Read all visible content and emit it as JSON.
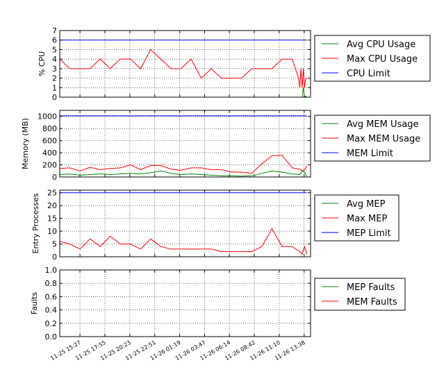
{
  "x_tick_labels": [
    "11-25 15:27",
    "11-25 17:55",
    "11-25 20:23",
    "11-25 22:51",
    "11-26 01:19",
    "11-26 03:47",
    "11-26 06:14",
    "11-26 08:42",
    "11-26 11:10",
    "11-26 13:38"
  ],
  "chart_data": [
    {
      "type": "line",
      "ylabel": "% CPU",
      "ylim": [
        0,
        7
      ],
      "yticks": [
        "0",
        "1",
        "2",
        "3",
        "4",
        "5",
        "6",
        "7"
      ],
      "grid": true,
      "legend_placement": "outside-right",
      "x": [
        "11-25 13:27",
        "11-25 14:27",
        "11-25 15:27",
        "11-25 16:27",
        "11-25 17:27",
        "11-25 18:27",
        "11-25 19:27",
        "11-25 20:27",
        "11-25 21:27",
        "11-25 22:27",
        "11-25 23:27",
        "11-26 00:27",
        "11-26 01:27",
        "11-26 02:27",
        "11-26 03:27",
        "11-26 04:27",
        "11-26 05:27",
        "11-26 06:27",
        "11-26 07:27",
        "11-26 08:27",
        "11-26 09:27",
        "11-26 10:27",
        "11-26 11:27",
        "11-26 12:27",
        "11-26 13:05",
        "11-26 13:12",
        "11-26 13:19",
        "11-26 13:26",
        "11-26 13:33",
        "11-26 13:40",
        "11-26 13:47",
        "11-26 13:54"
      ],
      "series": [
        {
          "name": "Avg CPU Usage",
          "color": "#008000",
          "values": [
            0,
            0,
            0,
            0,
            0,
            0,
            0,
            0,
            0,
            0,
            0,
            0,
            0,
            0,
            0,
            0,
            0,
            0,
            0,
            0,
            0,
            0,
            0,
            0,
            0,
            0,
            0,
            0,
            1,
            0,
            0.1,
            0
          ]
        },
        {
          "name": "Max CPU Usage",
          "color": "#ff0000",
          "values": [
            4,
            3,
            3,
            3,
            4,
            3,
            4,
            4,
            3,
            5,
            4,
            3,
            3,
            4,
            2,
            3,
            2,
            2,
            2,
            3,
            3,
            3,
            4,
            4,
            2,
            1,
            3,
            1,
            3,
            1,
            2,
            2
          ]
        },
        {
          "name": "CPU Limit",
          "color": "#0000ff",
          "values": [
            6,
            6,
            6,
            6,
            6,
            6,
            6,
            6,
            6,
            6,
            6,
            6,
            6,
            6,
            6,
            6,
            6,
            6,
            6,
            6,
            6,
            6,
            6,
            6,
            6,
            6,
            6,
            6,
            6,
            6,
            6,
            6
          ]
        }
      ]
    },
    {
      "type": "line",
      "ylabel": "Memory (MB)",
      "ylim": [
        0,
        1100
      ],
      "yticks": [
        "0",
        "200",
        "400",
        "600",
        "800",
        "1000"
      ],
      "grid": true,
      "legend_placement": "outside-right",
      "x": [
        "11-25 13:27",
        "11-25 14:27",
        "11-25 15:27",
        "11-25 16:27",
        "11-25 17:27",
        "11-25 18:27",
        "11-25 19:27",
        "11-25 20:27",
        "11-25 21:27",
        "11-25 22:27",
        "11-25 23:27",
        "11-26 00:27",
        "11-26 01:27",
        "11-26 02:27",
        "11-26 03:27",
        "11-26 04:27",
        "11-26 05:27",
        "11-26 06:27",
        "11-26 07:27",
        "11-26 08:27",
        "11-26 09:27",
        "11-26 10:27",
        "11-26 11:27",
        "11-26 12:27",
        "11-26 13:12",
        "11-26 13:26",
        "11-26 13:40",
        "11-26 13:54"
      ],
      "series": [
        {
          "name": "Avg MEM Usage",
          "color": "#008000",
          "values": [
            40,
            50,
            30,
            40,
            50,
            40,
            50,
            60,
            50,
            70,
            100,
            60,
            40,
            50,
            40,
            30,
            20,
            20,
            15,
            20,
            60,
            100,
            80,
            50,
            40,
            100,
            80,
            10
          ]
        },
        {
          "name": "Max MEM Usage",
          "color": "#ff0000",
          "values": [
            140,
            150,
            100,
            160,
            120,
            140,
            150,
            200,
            120,
            190,
            190,
            130,
            110,
            150,
            150,
            120,
            120,
            80,
            80,
            60,
            220,
            350,
            360,
            150,
            130,
            100,
            120,
            180
          ]
        },
        {
          "name": "MEM Limit",
          "color": "#0000ff",
          "values": [
            1010,
            1010,
            1010,
            1010,
            1010,
            1010,
            1010,
            1010,
            1010,
            1010,
            1010,
            1010,
            1010,
            1010,
            1010,
            1010,
            1010,
            1010,
            1010,
            1010,
            1010,
            1010,
            1010,
            1010,
            1010,
            1010,
            1010,
            1010
          ]
        }
      ]
    },
    {
      "type": "line",
      "ylabel": "Entry Processes",
      "ylim": [
        0,
        26
      ],
      "yticks": [
        "0",
        "5",
        "10",
        "15",
        "20",
        "25"
      ],
      "grid": true,
      "legend_placement": "outside-right",
      "x": [
        "11-25 13:27",
        "11-25 14:27",
        "11-25 15:27",
        "11-25 16:27",
        "11-25 17:27",
        "11-25 18:27",
        "11-25 19:27",
        "11-25 20:27",
        "11-25 21:27",
        "11-25 22:27",
        "11-25 23:27",
        "11-26 00:27",
        "11-26 01:27",
        "11-26 02:27",
        "11-26 03:27",
        "11-26 04:27",
        "11-26 05:27",
        "11-26 06:27",
        "11-26 07:27",
        "11-26 08:27",
        "11-26 09:27",
        "11-26 10:27",
        "11-26 11:27",
        "11-26 12:27",
        "11-26 13:12",
        "11-26 13:26",
        "11-26 13:40",
        "11-26 13:54"
      ],
      "series": [
        {
          "name": "Avg MEP",
          "color": "#008000",
          "values": [
            0,
            0,
            0,
            0,
            0,
            0,
            0,
            0,
            0,
            0,
            0,
            0,
            0,
            0,
            0,
            0,
            0,
            0,
            0,
            0,
            0,
            0,
            0,
            0,
            0,
            0,
            0,
            0
          ]
        },
        {
          "name": "Max MEP",
          "color": "#ff0000",
          "values": [
            6,
            5,
            3,
            7,
            4,
            8,
            5,
            5,
            3,
            7,
            4,
            3,
            3,
            3,
            3,
            3,
            2,
            2,
            2,
            2,
            4,
            11,
            4,
            4,
            2,
            1,
            4,
            1
          ]
        },
        {
          "name": "MEP Limit",
          "color": "#0000ff",
          "values": [
            25,
            25,
            25,
            25,
            25,
            25,
            25,
            25,
            25,
            25,
            25,
            25,
            25,
            25,
            25,
            25,
            25,
            25,
            25,
            25,
            25,
            25,
            25,
            25,
            25,
            25,
            25,
            25
          ]
        }
      ]
    },
    {
      "type": "line",
      "ylabel": "Faults",
      "ylim": [
        0,
        1
      ],
      "yticks": [
        "0.0",
        "0.2",
        "0.4",
        "0.6",
        "0.8",
        "1.0"
      ],
      "grid": true,
      "legend_placement": "outside-right",
      "x": [],
      "series": [
        {
          "name": "MEP Faults",
          "color": "#008000",
          "values": []
        },
        {
          "name": "MEM Faults",
          "color": "#ff0000",
          "values": []
        }
      ]
    }
  ]
}
